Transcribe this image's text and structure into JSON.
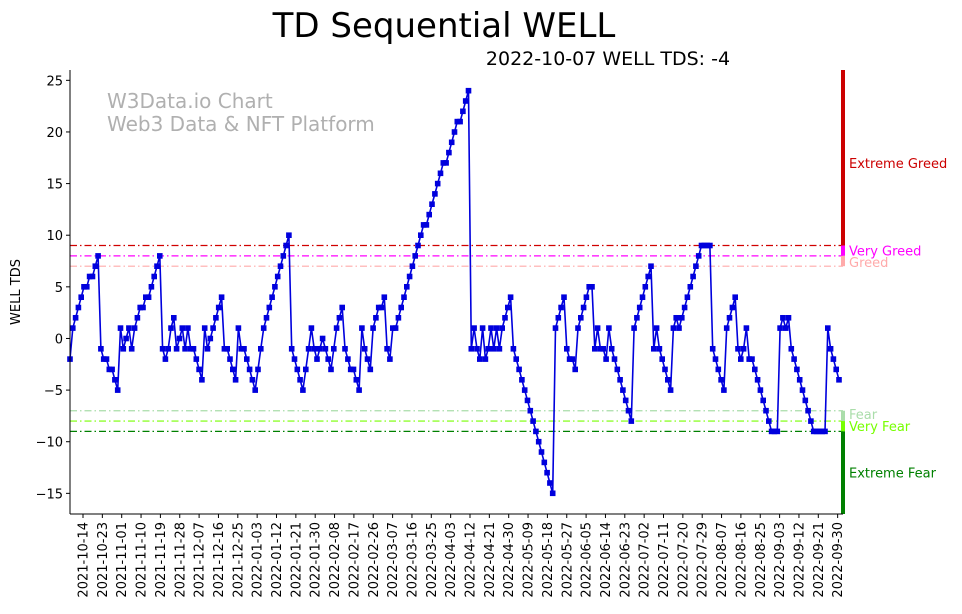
{
  "chart_data": {
    "type": "line",
    "title": "TD Sequential WELL",
    "subtitle": "2022-10-07 WELL TDS: -4",
    "xlabel": "",
    "ylabel": "WELL TDS",
    "ylim": [
      -17,
      26
    ],
    "yticks": [
      25,
      20,
      15,
      10,
      5,
      0,
      -5,
      -10,
      -15
    ],
    "x_tick_labels": [
      "2021-10-14",
      "2021-10-23",
      "2021-11-01",
      "2021-11-10",
      "2021-11-19",
      "2021-11-28",
      "2021-12-07",
      "2021-12-16",
      "2021-12-25",
      "2022-01-03",
      "2022-01-12",
      "2022-01-21",
      "2022-01-30",
      "2022-02-08",
      "2022-02-17",
      "2022-02-26",
      "2022-03-07",
      "2022-03-16",
      "2022-03-25",
      "2022-04-03",
      "2022-04-12",
      "2022-04-21",
      "2022-04-30",
      "2022-05-09",
      "2022-05-18",
      "2022-05-27",
      "2022-06-05",
      "2022-06-14",
      "2022-06-23",
      "2022-07-02",
      "2022-07-11",
      "2022-07-20",
      "2022-07-29",
      "2022-08-07",
      "2022-08-16",
      "2022-08-25",
      "2022-09-03",
      "2022-09-12",
      "2022-09-21",
      "2022-09-30"
    ],
    "series": [
      {
        "name": "WELL TDS",
        "color": "#0000dd",
        "values": [
          -2,
          1,
          2,
          3,
          4,
          5,
          5,
          6,
          6,
          7,
          8,
          -1,
          -2,
          -2,
          -3,
          -3,
          -4,
          -5,
          1,
          -1,
          0,
          1,
          -1,
          1,
          2,
          3,
          3,
          4,
          4,
          5,
          6,
          7,
          8,
          -1,
          -2,
          -1,
          1,
          2,
          -1,
          0,
          1,
          -1,
          1,
          -1,
          -1,
          -2,
          -3,
          -4,
          1,
          -1,
          0,
          1,
          2,
          3,
          4,
          -1,
          -1,
          -2,
          -3,
          -4,
          1,
          -1,
          -1,
          -2,
          -3,
          -4,
          -5,
          -3,
          -1,
          1,
          2,
          3,
          4,
          5,
          6,
          7,
          8,
          9,
          10,
          -1,
          -2,
          -3,
          -4,
          -5,
          -3,
          -1,
          1,
          -1,
          -2,
          -1,
          0,
          -1,
          -2,
          -3,
          -1,
          1,
          2,
          3,
          -1,
          -2,
          -3,
          -3,
          -4,
          -5,
          1,
          -1,
          -2,
          -3,
          1,
          2,
          3,
          3,
          4,
          -1,
          -2,
          1,
          1,
          2,
          3,
          4,
          5,
          6,
          7,
          8,
          9,
          10,
          11,
          11,
          12,
          13,
          14,
          15,
          16,
          17,
          17,
          18,
          19,
          20,
          21,
          21,
          22,
          23,
          24,
          -1,
          1,
          -1,
          -2,
          1,
          -2,
          -1,
          1,
          -1,
          1,
          -1,
          1,
          2,
          3,
          4,
          -1,
          -2,
          -3,
          -4,
          -5,
          -6,
          -7,
          -8,
          -9,
          -10,
          -11,
          -12,
          -13,
          -14,
          -15,
          1,
          2,
          3,
          4,
          -1,
          -2,
          -2,
          -3,
          1,
          2,
          3,
          4,
          5,
          5,
          -1,
          1,
          -1,
          -1,
          -2,
          1,
          -1,
          -2,
          -3,
          -4,
          -5,
          -6,
          -7,
          -8,
          1,
          2,
          3,
          4,
          5,
          6,
          7,
          -1,
          1,
          -1,
          -2,
          -3,
          -4,
          -5,
          1,
          2,
          1,
          2,
          3,
          4,
          5,
          6,
          7,
          8,
          9,
          9,
          9,
          9,
          -1,
          -2,
          -3,
          -4,
          -5,
          1,
          2,
          3,
          4,
          -1,
          -2,
          -1,
          1,
          -2,
          -2,
          -3,
          -4,
          -5,
          -6,
          -7,
          -8,
          -9,
          -9,
          -9,
          1,
          2,
          1,
          2,
          -1,
          -2,
          -3,
          -4,
          -5,
          -6,
          -7,
          -8,
          -9,
          -9,
          -9,
          -9,
          -9,
          1,
          -1,
          -2,
          -3,
          -4
        ]
      }
    ],
    "reference_lines": [
      {
        "name": "Extreme Greed",
        "value": 9,
        "color": "#d00000"
      },
      {
        "name": "Very Greed",
        "value": 8,
        "color": "#ff00ff"
      },
      {
        "name": "Greed",
        "value": 7,
        "color": "#ffaaaa"
      },
      {
        "name": "Fear",
        "value": -7,
        "color": "#aaddaa"
      },
      {
        "name": "Very Fear",
        "value": -8,
        "color": "#77ff00"
      },
      {
        "name": "Extreme Fear",
        "value": -9,
        "color": "#008000"
      }
    ],
    "zones": [
      {
        "label": "Extreme Greed",
        "from": 9,
        "to": 26,
        "color": "#cc0000"
      },
      {
        "label": "Very Greed",
        "from": 8,
        "to": 9,
        "color": "#ff00ff"
      },
      {
        "label": "Greed",
        "from": 7,
        "to": 8,
        "color": "#ffaaaa"
      },
      {
        "label": "Fear",
        "from": -8,
        "to": -7,
        "color": "#aaddaa"
      },
      {
        "label": "Very Fear",
        "from": -9,
        "to": -8,
        "color": "#77ff00"
      },
      {
        "label": "Extreme Fear",
        "from": -17,
        "to": -9,
        "color": "#008000"
      }
    ],
    "watermark": [
      "W3Data.io Chart",
      "Web3 Data & NFT Platform"
    ]
  }
}
